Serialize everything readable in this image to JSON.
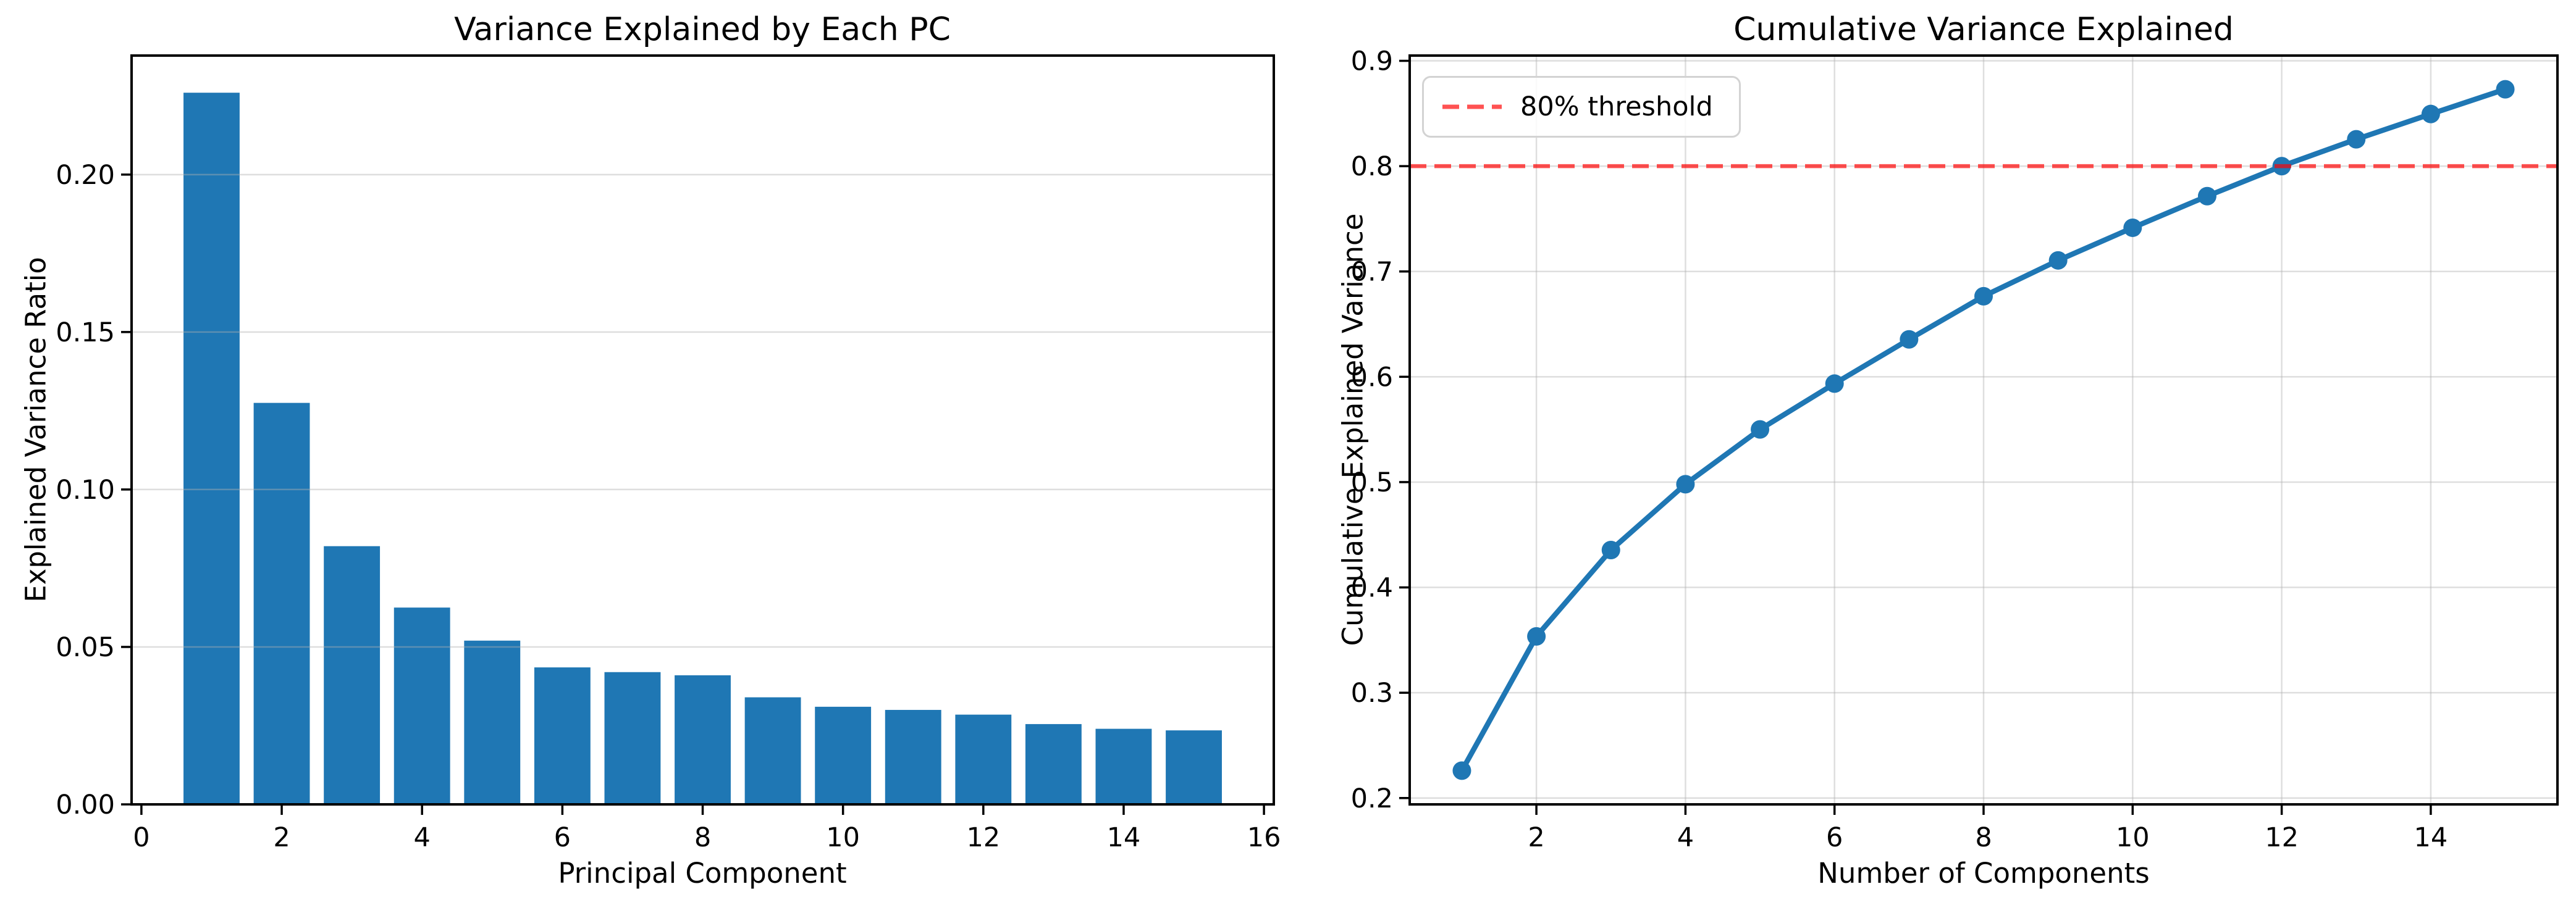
{
  "figure": {
    "background": "#ffffff"
  },
  "colors": {
    "primary_blue": "#1f77b4",
    "threshold_red": "#ff0000",
    "threshold_opacity": 0.68,
    "grid_gray": "#b0b0b0",
    "grid_opacity": 0.42,
    "spine_black": "#000000",
    "text_black": "#000000",
    "legend_border": "#d3d3d3"
  },
  "chart_data": [
    {
      "type": "bar",
      "title": "Variance Explained by Each PC",
      "xlabel": "Principal Component",
      "ylabel": "Explained Variance Ratio",
      "x": [
        1,
        2,
        3,
        4,
        5,
        6,
        7,
        8,
        9,
        10,
        11,
        12,
        13,
        14,
        15
      ],
      "values": [
        0.226,
        0.1275,
        0.082,
        0.0625,
        0.052,
        0.0435,
        0.042,
        0.041,
        0.034,
        0.031,
        0.03,
        0.0285,
        0.0255,
        0.024,
        0.0235
      ],
      "bar_width": 0.8,
      "xlim": [
        -0.14,
        16.14
      ],
      "ylim": [
        0,
        0.2378
      ],
      "xticks": [
        0,
        2,
        4,
        6,
        8,
        10,
        12,
        14,
        16
      ],
      "xticklabels": [
        "0",
        "2",
        "4",
        "6",
        "8",
        "10",
        "12",
        "14",
        "16"
      ],
      "yticks": [
        0,
        0.05,
        0.1,
        0.15,
        0.2
      ],
      "yticklabels": [
        "0.00",
        "0.05",
        "0.10",
        "0.15",
        "0.20"
      ],
      "grid": "y",
      "grid_over_data": true
    },
    {
      "type": "line",
      "title": "Cumulative Variance Explained",
      "xlabel": "Number of Components",
      "ylabel": "Cumulative Explained Variance",
      "x": [
        1,
        2,
        3,
        4,
        5,
        6,
        7,
        8,
        9,
        10,
        11,
        12,
        13,
        14,
        15
      ],
      "values": [
        0.226,
        0.3535,
        0.4355,
        0.498,
        0.55,
        0.5935,
        0.6355,
        0.6765,
        0.7105,
        0.7415,
        0.7715,
        0.8,
        0.8255,
        0.8495,
        0.873
      ],
      "marker": "o",
      "xlim": [
        0.3,
        15.7
      ],
      "ylim": [
        0.194,
        0.905
      ],
      "xticks": [
        2,
        4,
        6,
        8,
        10,
        12,
        14
      ],
      "xticklabels": [
        "2",
        "4",
        "6",
        "8",
        "10",
        "12",
        "14"
      ],
      "yticks": [
        0.2,
        0.3,
        0.4,
        0.5,
        0.6,
        0.7,
        0.8,
        0.9
      ],
      "yticklabels": [
        "0.2",
        "0.3",
        "0.4",
        "0.5",
        "0.6",
        "0.7",
        "0.8",
        "0.9"
      ],
      "grid": "both",
      "grid_over_data": false,
      "threshold": {
        "value": 0.8,
        "label": "80% threshold"
      },
      "legend_position": "upper-left"
    }
  ]
}
